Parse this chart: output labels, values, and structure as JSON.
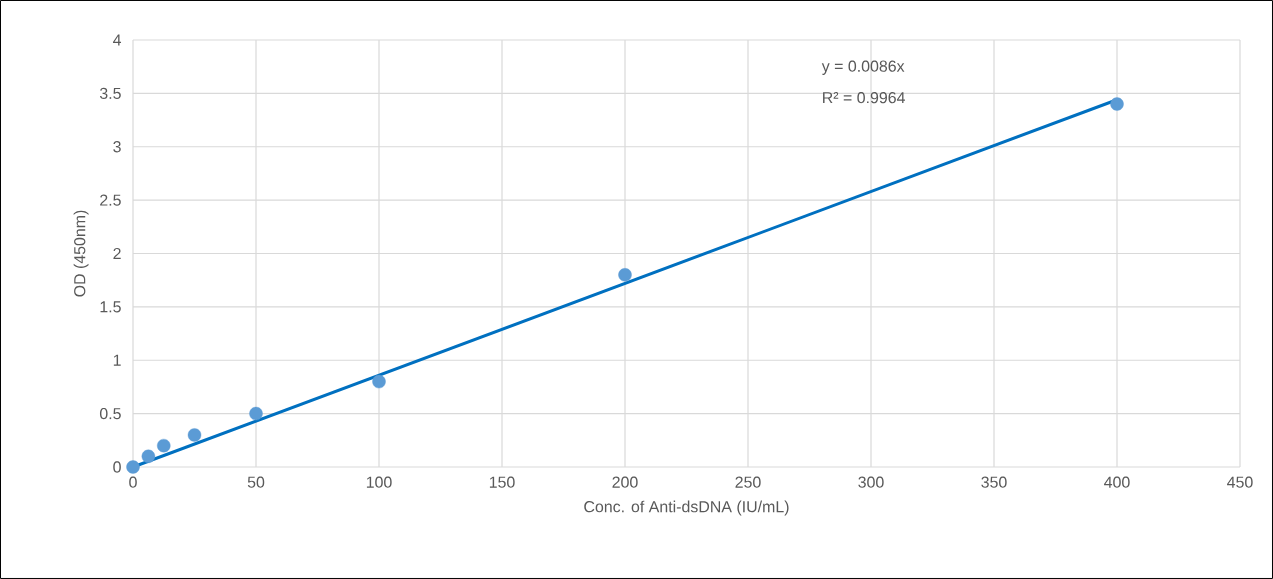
{
  "chart_data": {
    "type": "scatter",
    "xlabel": "Conc. of Anti-dsDNA (IU/mL)",
    "ylabel": "OD (450nm)",
    "series": [
      {
        "color": "#5b9bd5",
        "marker": "circle",
        "x": [
          0,
          6.25,
          12.5,
          25,
          50,
          100,
          200,
          400
        ],
        "values": [
          0,
          0.1,
          0.2,
          0.3,
          0.5,
          0.8,
          1.8,
          3.4
        ]
      },
      {
        "type": "line",
        "color": "#0070c0",
        "marker": "none",
        "x": [
          0,
          400
        ],
        "values": [
          0,
          3.44
        ]
      }
    ],
    "annotations": [
      "y = 0.0086x",
      "R² = 0.9964"
    ],
    "xlim": [
      0,
      450
    ],
    "xticks": [
      0,
      50,
      100,
      150,
      200,
      250,
      300,
      350,
      400,
      450
    ],
    "ylim": [
      0,
      4
    ],
    "yticks": [
      0,
      0.5,
      1,
      1.5,
      2,
      2.5,
      3,
      3.5,
      4
    ],
    "grid": true
  }
}
